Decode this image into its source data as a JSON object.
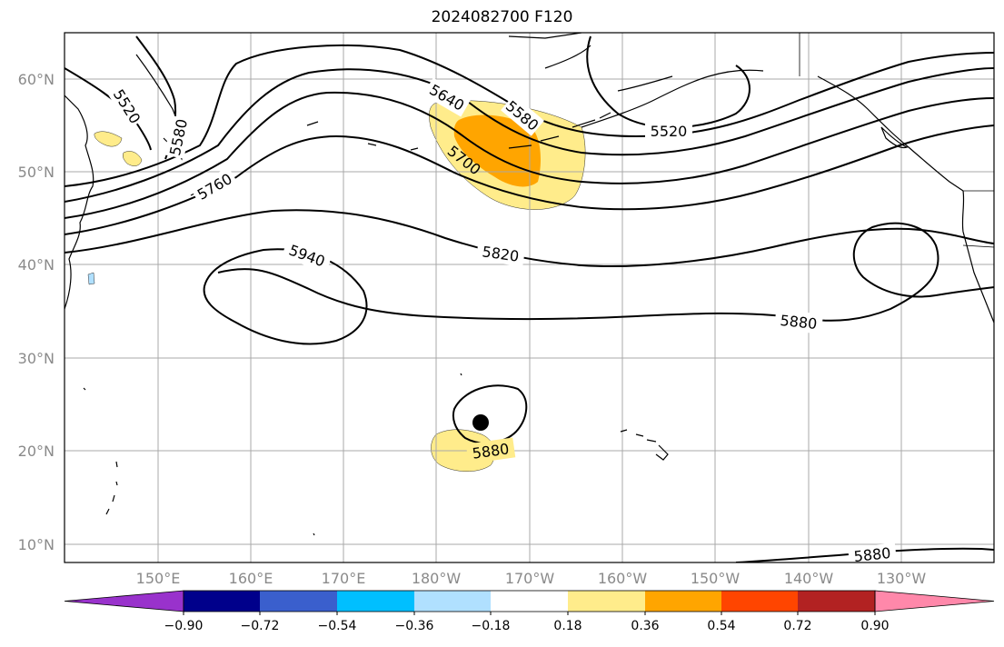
{
  "title": "2024082700 F120",
  "map": {
    "lat_ticks": [
      "60°N",
      "50°N",
      "40°N",
      "30°N",
      "20°N",
      "10°N"
    ],
    "lon_ticks": [
      "150°E",
      "160°E",
      "170°E",
      "180°W",
      "170°W",
      "160°W",
      "150°W",
      "140°W",
      "130°W"
    ],
    "contour_labels": [
      "5520",
      "5580",
      "5640",
      "5580",
      "5700",
      "5760",
      "5520",
      "5940",
      "5820",
      "5880",
      "5880",
      "5880"
    ],
    "storm_marker": "storm-center"
  },
  "colorbar": {
    "colors": [
      "#9932cc",
      "#00008b",
      "#3a5fcd",
      "#00bfff",
      "#b0e0ff",
      "#ffffff",
      "#ffec8b",
      "#ffa500",
      "#ff4500",
      "#b22222",
      "#ff88aa"
    ],
    "tick_labels": [
      "−0.90",
      "−0.72",
      "−0.54",
      "−0.36",
      "−0.18",
      "0.18",
      "0.36",
      "0.54",
      "0.72",
      "0.90"
    ]
  }
}
